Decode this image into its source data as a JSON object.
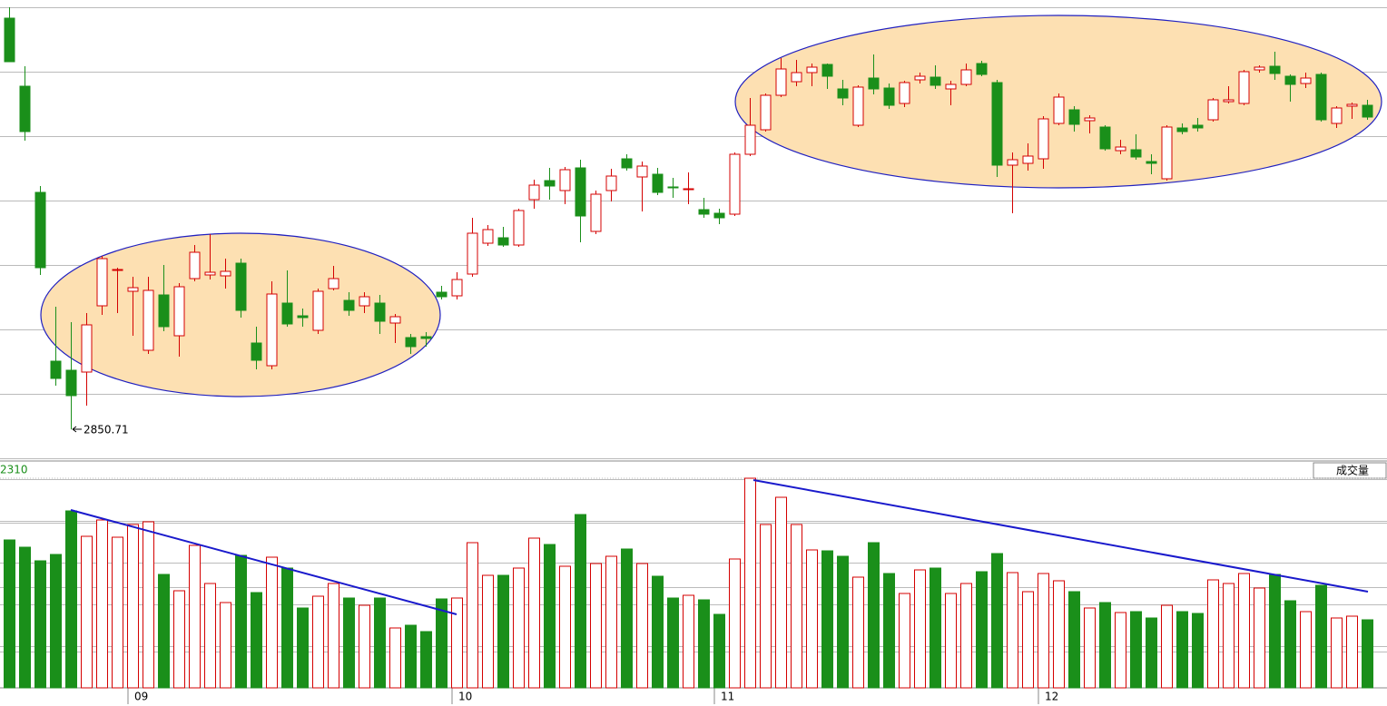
{
  "chart_data": {
    "type": "candlestick",
    "up_color": "#d40000",
    "down_color": "#1a8f1a",
    "ylim": [
      2816,
      3324
    ],
    "y2lim": [
      0,
      2400
    ],
    "y2ticks": [
      2310
    ],
    "volume_label": "成交量",
    "categories": [
      null,
      null,
      null,
      null,
      null,
      null,
      null,
      null,
      "09",
      null,
      null,
      null,
      null,
      null,
      null,
      null,
      null,
      null,
      null,
      null,
      null,
      null,
      null,
      null,
      null,
      null,
      null,
      null,
      null,
      "10",
      null,
      null,
      null,
      null,
      null,
      null,
      null,
      null,
      null,
      null,
      null,
      null,
      null,
      null,
      null,
      null,
      "11",
      null,
      null,
      null,
      null,
      null,
      null,
      null,
      null,
      null,
      null,
      null,
      null,
      null,
      null,
      null,
      null,
      null,
      null,
      null,
      null,
      "12",
      null,
      null,
      null,
      null,
      null,
      null,
      null,
      null,
      null,
      null,
      null,
      null,
      null,
      null,
      null,
      null,
      null,
      null,
      null,
      null,
      null
    ],
    "candles": [
      [
        3304,
        3316,
        3256,
        3256
      ],
      [
        3229,
        3251,
        3169,
        3179
      ],
      [
        3112,
        3119,
        3021,
        3029
      ],
      [
        2926,
        2986,
        2899,
        2907
      ],
      [
        2916,
        2969,
        2850.71,
        2888
      ],
      [
        2914,
        2979,
        2877,
        2966
      ],
      [
        2987,
        3042,
        2977,
        3039
      ],
      [
        3026,
        3029,
        2979,
        3027
      ],
      [
        3003,
        3019,
        2954,
        3007
      ],
      [
        2938,
        3019,
        2934,
        3004
      ],
      [
        2999,
        3032,
        2959,
        2964
      ],
      [
        2954,
        3012,
        2931,
        3008
      ],
      [
        3017,
        3054,
        3014,
        3046
      ],
      [
        3021,
        3066,
        3016,
        3024
      ],
      [
        3020,
        3039,
        3006,
        3025
      ],
      [
        3034,
        3039,
        2974,
        2982
      ],
      [
        2946,
        2964,
        2917,
        2927
      ],
      [
        2921,
        3014,
        2917,
        3000
      ],
      [
        2990,
        3026,
        2964,
        2967
      ],
      [
        2976,
        2984,
        2964,
        2974
      ],
      [
        2960,
        3006,
        2956,
        3003
      ],
      [
        3006,
        3031,
        3004,
        3017
      ],
      [
        2993,
        3002,
        2976,
        2982
      ],
      [
        2987,
        3002,
        2979,
        2997
      ],
      [
        2990,
        2999,
        2956,
        2970
      ],
      [
        2968,
        2978,
        2946,
        2975
      ],
      [
        2952,
        2956,
        2934,
        2942
      ],
      [
        2953,
        2958,
        2942,
        2951
      ],
      [
        3002,
        3009,
        2994,
        2997
      ],
      [
        2998,
        3024,
        2994,
        3016
      ],
      [
        3022,
        3084,
        3019,
        3067
      ],
      [
        3056,
        3076,
        3053,
        3071
      ],
      [
        3062,
        3074,
        3052,
        3054
      ],
      [
        3054,
        3094,
        3052,
        3092
      ],
      [
        3104,
        3126,
        3094,
        3120
      ],
      [
        3125,
        3139,
        3104,
        3119
      ],
      [
        3114,
        3140,
        3099,
        3137
      ],
      [
        3139,
        3148,
        3057,
        3086
      ],
      [
        3069,
        3114,
        3066,
        3110
      ],
      [
        3114,
        3138,
        3102,
        3130
      ],
      [
        3149,
        3154,
        3136,
        3139
      ],
      [
        3129,
        3146,
        3091,
        3141
      ],
      [
        3132,
        3139,
        3109,
        3112
      ],
      [
        3118,
        3128,
        3106,
        3117
      ],
      [
        3115,
        3134,
        3099,
        3116
      ],
      [
        3093,
        3106,
        3084,
        3088
      ],
      [
        3089,
        3094,
        3077,
        3084
      ],
      [
        3088,
        3156,
        3086,
        3154
      ],
      [
        3154,
        3216,
        3152,
        3186
      ],
      [
        3181,
        3221,
        3179,
        3219
      ],
      [
        3219,
        3260,
        3217,
        3248
      ],
      [
        3234,
        3258,
        3229,
        3244
      ],
      [
        3244,
        3254,
        3229,
        3250
      ],
      [
        3253,
        3254,
        3226,
        3240
      ],
      [
        3226,
        3236,
        3208,
        3216
      ],
      [
        3186,
        3230,
        3184,
        3228
      ],
      [
        3238,
        3264,
        3220,
        3226
      ],
      [
        3227,
        3232,
        3204,
        3208
      ],
      [
        3210,
        3235,
        3206,
        3233
      ],
      [
        3236,
        3244,
        3232,
        3240
      ],
      [
        3239,
        3252,
        3226,
        3230
      ],
      [
        3226,
        3235,
        3208,
        3231
      ],
      [
        3231,
        3254,
        3229,
        3247
      ],
      [
        3254,
        3257,
        3240,
        3242
      ],
      [
        3233,
        3236,
        3129,
        3142
      ],
      [
        3142,
        3156,
        3089,
        3148
      ],
      [
        3144,
        3166,
        3136,
        3152
      ],
      [
        3149,
        3196,
        3138,
        3193
      ],
      [
        3188,
        3221,
        3186,
        3217
      ],
      [
        3203,
        3207,
        3179,
        3187
      ],
      [
        3191,
        3197,
        3177,
        3194
      ],
      [
        3184,
        3186,
        3158,
        3160
      ],
      [
        3158,
        3170,
        3154,
        3162
      ],
      [
        3159,
        3176,
        3148,
        3151
      ],
      [
        3146,
        3154,
        3132,
        3144
      ],
      [
        3127,
        3186,
        3125,
        3184
      ],
      [
        3183,
        3188,
        3176,
        3179
      ],
      [
        3186,
        3194,
        3179,
        3183
      ],
      [
        3192,
        3216,
        3190,
        3214
      ],
      [
        3212,
        3229,
        3210,
        3214
      ],
      [
        3210,
        3247,
        3208,
        3245
      ],
      [
        3247,
        3252,
        3244,
        3250
      ],
      [
        3251,
        3267,
        3236,
        3243
      ],
      [
        3240,
        3242,
        3212,
        3231
      ],
      [
        3232,
        3244,
        3227,
        3238
      ],
      [
        3242,
        3244,
        3190,
        3192
      ],
      [
        3188,
        3207,
        3183,
        3205
      ],
      [
        3207,
        3211,
        3193,
        3209
      ],
      [
        3208,
        3214,
        3192,
        3195
      ]
    ],
    "volume": [
      1630,
      1550,
      1400,
      1470,
      1950,
      1670,
      1850,
      1660,
      1800,
      1830,
      1250,
      1070,
      1570,
      1150,
      940,
      1460,
      1050,
      1440,
      1320,
      880,
      1010,
      1150,
      990,
      910,
      990,
      660,
      690,
      620,
      980,
      990,
      1600,
      1240,
      1240,
      1320,
      1650,
      1580,
      1340,
      1910,
      1370,
      1450,
      1530,
      1370,
      1230,
      990,
      1020,
      970,
      810,
      1420,
      2310,
      1800,
      2100,
      1800,
      1520,
      1510,
      1450,
      1220,
      1600,
      1260,
      1040,
      1300,
      1320,
      1040,
      1150,
      1280,
      1480,
      1270,
      1060,
      1260,
      1180,
      1060,
      880,
      940,
      830,
      840,
      770,
      910,
      840,
      820,
      1190,
      1150,
      1260,
      1100,
      1250,
      960,
      840,
      1130,
      770,
      790,
      750
    ]
  }
}
